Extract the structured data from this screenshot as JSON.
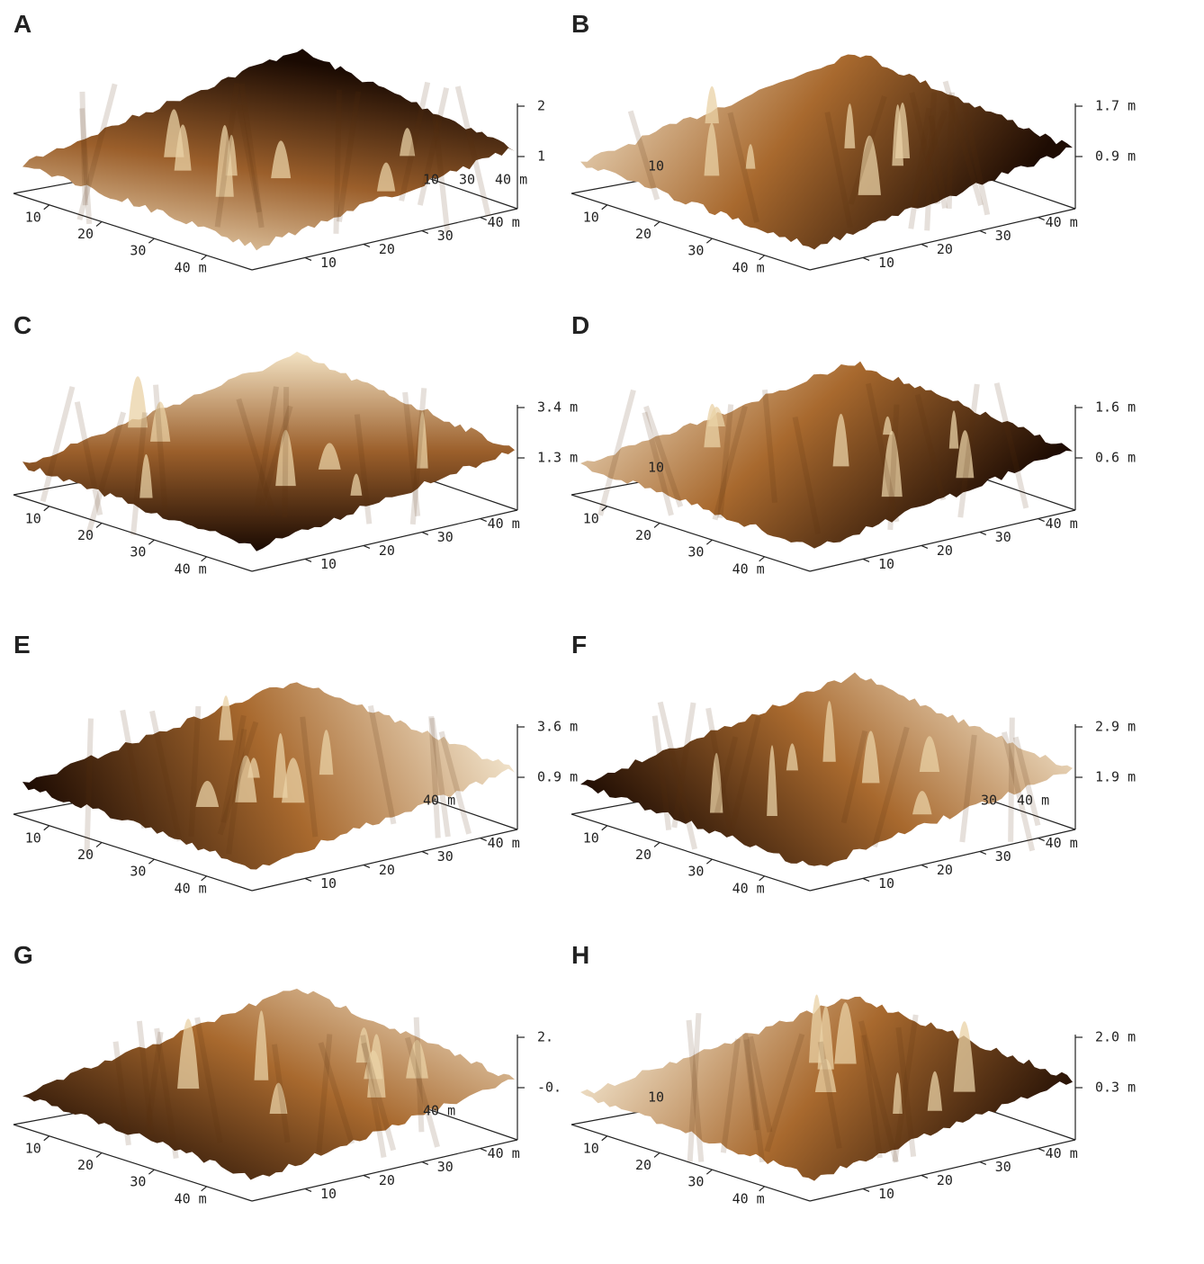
{
  "panels": [
    {
      "label": "A",
      "z_ticks": [
        "2",
        "1"
      ],
      "left_ticks": [
        "10",
        "20",
        "30",
        "40 m"
      ],
      "right_ticks": [
        "10",
        "20",
        "30",
        "40 m"
      ],
      "back_ticks": [
        "10",
        "30",
        "40 m"
      ]
    },
    {
      "label": "B",
      "z_ticks": [
        "1.7 m",
        "0.9 m"
      ],
      "left_ticks": [
        "10",
        "20",
        "30",
        "40 m"
      ],
      "right_ticks": [
        "10",
        "20",
        "30",
        "40 m"
      ],
      "back_ticks": [
        "10"
      ]
    },
    {
      "label": "C",
      "z_ticks": [
        "3.4 m",
        "1.3 m"
      ],
      "left_ticks": [
        "10",
        "20",
        "30",
        "40 m"
      ],
      "right_ticks": [
        "10",
        "20",
        "30",
        "40 m"
      ],
      "back_ticks": []
    },
    {
      "label": "D",
      "z_ticks": [
        "1.6 m",
        "0.6 m"
      ],
      "left_ticks": [
        "10",
        "20",
        "30",
        "40 m"
      ],
      "right_ticks": [
        "10",
        "20",
        "30",
        "40 m"
      ],
      "back_ticks": [
        "10"
      ]
    },
    {
      "label": "E",
      "z_ticks": [
        "3.6 m",
        "0.9 m"
      ],
      "left_ticks": [
        "10",
        "20",
        "30",
        "40 m"
      ],
      "right_ticks": [
        "10",
        "20",
        "30",
        "40 m"
      ],
      "back_ticks": [
        "40 m"
      ]
    },
    {
      "label": "F",
      "z_ticks": [
        "2.9 m",
        "1.9 m"
      ],
      "left_ticks": [
        "10",
        "20",
        "30",
        "40 m"
      ],
      "right_ticks": [
        "10",
        "20",
        "30",
        "40 m"
      ],
      "back_ticks": [
        "30",
        "40 m"
      ]
    },
    {
      "label": "G",
      "z_ticks": [
        "2.",
        "-0."
      ],
      "left_ticks": [
        "10",
        "20",
        "30",
        "40 m"
      ],
      "right_ticks": [
        "10",
        "20",
        "30",
        "40 m"
      ],
      "back_ticks": [
        "40 m"
      ]
    },
    {
      "label": "H",
      "z_ticks": [
        "2.0 m",
        "0.3 m"
      ],
      "left_ticks": [
        "10",
        "20",
        "30",
        "40 m"
      ],
      "right_ticks": [
        "10",
        "20",
        "30",
        "40 m"
      ],
      "back_ticks": [
        "10"
      ]
    }
  ]
}
